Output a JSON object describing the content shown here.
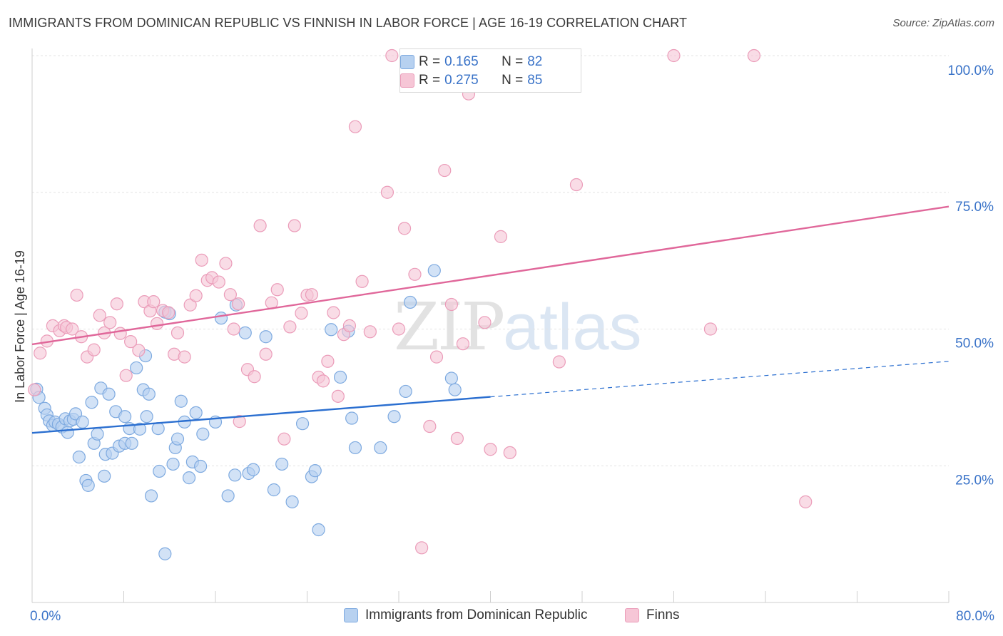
{
  "title": "IMMIGRANTS FROM DOMINICAN REPUBLIC VS FINNISH IN LABOR FORCE | AGE 16-19 CORRELATION CHART",
  "source": "Source: ZipAtlas.com",
  "watermark": {
    "zip": "ZIP",
    "atlas": "atlas"
  },
  "colors": {
    "blue_fill": "#b7d1f0",
    "blue_stroke": "#7eaae0",
    "blue_line": "#2b6fd0",
    "pink_fill": "#f6c6d6",
    "pink_stroke": "#eb9cb9",
    "pink_line": "#e0679a",
    "axis_text": "#3a73c8",
    "grid": "#e3e3e3"
  },
  "stats": [
    {
      "r_label": "R = ",
      "r_value": "0.165",
      "n_label": "N = ",
      "n_value": "82"
    },
    {
      "r_label": "R = ",
      "r_value": "0.275",
      "n_label": "N = ",
      "n_value": "85"
    }
  ],
  "chart_data": {
    "type": "scatter",
    "title": "IMMIGRANTS FROM DOMINICAN REPUBLIC VS FINNISH IN LABOR FORCE | AGE 16-19 CORRELATION CHART",
    "xlabel": "",
    "ylabel": "In Labor Force | Age 16-19",
    "xlim": [
      0,
      80
    ],
    "ylim": [
      0,
      100
    ],
    "x_tick_labels": [
      "0.0%",
      "80.0%"
    ],
    "y_ticks": [
      25,
      50,
      75,
      100
    ],
    "y_tick_labels": [
      "25.0%",
      "50.0%",
      "75.0%",
      "100.0%"
    ],
    "grid": true,
    "legend_position": "bottom",
    "series": [
      {
        "name": "Immigrants from Dominican Republic",
        "color": "#7eaae0",
        "trend": {
          "x": [
            0,
            40
          ],
          "y": [
            31.0,
            37.6
          ],
          "dashed_to": [
            80,
            44.1
          ]
        },
        "points": [
          [
            0.4,
            39
          ],
          [
            0.6,
            37.5
          ],
          [
            1.1,
            35.5
          ],
          [
            1.3,
            34.3
          ],
          [
            1.5,
            33.2
          ],
          [
            1.8,
            32.4
          ],
          [
            2.0,
            33.0
          ],
          [
            2.3,
            32.6
          ],
          [
            2.6,
            32.1
          ],
          [
            2.9,
            33.6
          ],
          [
            3.1,
            31.1
          ],
          [
            3.3,
            33.2
          ],
          [
            3.6,
            33.5
          ],
          [
            3.8,
            34.5
          ],
          [
            4.1,
            26.6
          ],
          [
            4.4,
            33.0
          ],
          [
            4.7,
            22.3
          ],
          [
            4.9,
            21.4
          ],
          [
            5.2,
            36.6
          ],
          [
            5.4,
            29.1
          ],
          [
            5.7,
            30.8
          ],
          [
            6.0,
            39.2
          ],
          [
            6.3,
            23.1
          ],
          [
            6.4,
            27.1
          ],
          [
            6.7,
            38.1
          ],
          [
            7.0,
            27.3
          ],
          [
            7.3,
            34.9
          ],
          [
            7.6,
            28.6
          ],
          [
            8.1,
            29.1
          ],
          [
            8.1,
            34.0
          ],
          [
            8.5,
            31.8
          ],
          [
            8.7,
            29.1
          ],
          [
            9.1,
            42.9
          ],
          [
            9.4,
            31.7
          ],
          [
            9.7,
            38.9
          ],
          [
            9.9,
            45.1
          ],
          [
            10.0,
            34.0
          ],
          [
            10.2,
            38.1
          ],
          [
            10.4,
            19.5
          ],
          [
            11.0,
            31.8
          ],
          [
            11.1,
            24.0
          ],
          [
            11.6,
            53.1
          ],
          [
            11.6,
            8.9
          ],
          [
            12.0,
            52.8
          ],
          [
            12.3,
            25.3
          ],
          [
            12.5,
            28.3
          ],
          [
            12.7,
            29.9
          ],
          [
            13.0,
            36.8
          ],
          [
            13.3,
            33.0
          ],
          [
            13.7,
            22.8
          ],
          [
            14.0,
            25.7
          ],
          [
            14.3,
            34.7
          ],
          [
            14.7,
            24.9
          ],
          [
            14.9,
            30.8
          ],
          [
            16.0,
            33.0
          ],
          [
            16.5,
            52.0
          ],
          [
            17.1,
            19.5
          ],
          [
            17.7,
            23.3
          ],
          [
            17.8,
            54.4
          ],
          [
            18.6,
            49.3
          ],
          [
            18.9,
            23.6
          ],
          [
            19.3,
            24.3
          ],
          [
            20.4,
            48.6
          ],
          [
            21.1,
            20.6
          ],
          [
            21.8,
            25.3
          ],
          [
            22.7,
            18.4
          ],
          [
            23.6,
            32.7
          ],
          [
            24.4,
            23.0
          ],
          [
            24.7,
            24.1
          ],
          [
            25.0,
            13.3
          ],
          [
            26.1,
            49.9
          ],
          [
            26.9,
            41.2
          ],
          [
            27.6,
            49.6
          ],
          [
            27.9,
            33.7
          ],
          [
            28.2,
            28.3
          ],
          [
            30.4,
            28.3
          ],
          [
            31.6,
            34.0
          ],
          [
            32.6,
            38.6
          ],
          [
            33.0,
            54.9
          ],
          [
            35.1,
            60.7
          ],
          [
            36.6,
            41.0
          ],
          [
            36.9,
            38.9
          ]
        ]
      },
      {
        "name": "Finns",
        "color": "#eb9cb9",
        "trend": {
          "x": [
            0,
            80
          ],
          "y": [
            47.2,
            72.4
          ]
        },
        "points": [
          [
            0.2,
            38.9
          ],
          [
            0.7,
            45.6
          ],
          [
            1.3,
            47.8
          ],
          [
            1.8,
            50.6
          ],
          [
            2.4,
            49.7
          ],
          [
            2.8,
            50.6
          ],
          [
            3.0,
            50.3
          ],
          [
            3.5,
            50.0
          ],
          [
            3.9,
            56.2
          ],
          [
            4.3,
            48.6
          ],
          [
            4.8,
            44.9
          ],
          [
            5.4,
            46.2
          ],
          [
            5.9,
            52.5
          ],
          [
            6.3,
            49.3
          ],
          [
            6.8,
            51.2
          ],
          [
            7.4,
            54.6
          ],
          [
            7.7,
            49.2
          ],
          [
            8.2,
            41.5
          ],
          [
            8.6,
            47.7
          ],
          [
            9.3,
            46.1
          ],
          [
            9.8,
            55.0
          ],
          [
            10.3,
            53.3
          ],
          [
            10.9,
            51.0
          ],
          [
            11.4,
            53.4
          ],
          [
            11.9,
            53.0
          ],
          [
            12.4,
            45.4
          ],
          [
            12.7,
            49.3
          ],
          [
            13.3,
            44.9
          ],
          [
            13.8,
            54.4
          ],
          [
            14.3,
            56.1
          ],
          [
            14.8,
            62.6
          ],
          [
            15.3,
            58.9
          ],
          [
            15.7,
            59.4
          ],
          [
            16.3,
            58.6
          ],
          [
            16.9,
            62.0
          ],
          [
            17.3,
            56.3
          ],
          [
            17.6,
            50.0
          ],
          [
            18.1,
            33.1
          ],
          [
            18.8,
            42.6
          ],
          [
            19.4,
            41.3
          ],
          [
            19.9,
            68.9
          ],
          [
            20.4,
            45.4
          ],
          [
            20.9,
            54.8
          ],
          [
            21.4,
            57.2
          ],
          [
            22.0,
            29.9
          ],
          [
            22.5,
            50.4
          ],
          [
            22.9,
            68.9
          ],
          [
            23.5,
            52.9
          ],
          [
            24.0,
            56.2
          ],
          [
            24.4,
            56.3
          ],
          [
            25.0,
            41.2
          ],
          [
            25.4,
            40.5
          ],
          [
            25.8,
            44.1
          ],
          [
            26.3,
            53.0
          ],
          [
            26.7,
            37.7
          ],
          [
            27.2,
            49.0
          ],
          [
            27.7,
            50.6
          ],
          [
            28.2,
            87.0
          ],
          [
            28.8,
            58.7
          ],
          [
            29.5,
            49.5
          ],
          [
            31.0,
            75.0
          ],
          [
            31.4,
            100.0
          ],
          [
            32.0,
            50.0
          ],
          [
            32.5,
            68.4
          ],
          [
            33.4,
            60.0
          ],
          [
            34.0,
            10.0
          ],
          [
            34.7,
            32.2
          ],
          [
            35.3,
            44.9
          ],
          [
            36.0,
            79.0
          ],
          [
            36.6,
            54.5
          ],
          [
            37.1,
            30.0
          ],
          [
            37.6,
            47.3
          ],
          [
            38.1,
            93.0
          ],
          [
            39.5,
            51.2
          ],
          [
            40.9,
            66.9
          ],
          [
            41.7,
            27.4
          ],
          [
            46.0,
            44.0
          ],
          [
            47.5,
            76.4
          ],
          [
            56.0,
            100.0
          ],
          [
            59.2,
            50.0
          ],
          [
            63.0,
            100.0
          ],
          [
            67.5,
            18.4
          ],
          [
            18.0,
            54.6
          ],
          [
            10.6,
            55.0
          ],
          [
            40.0,
            28.0
          ]
        ]
      }
    ]
  },
  "legend": [
    {
      "label": "Immigrants from Dominican Republic"
    },
    {
      "label": "Finns"
    }
  ]
}
